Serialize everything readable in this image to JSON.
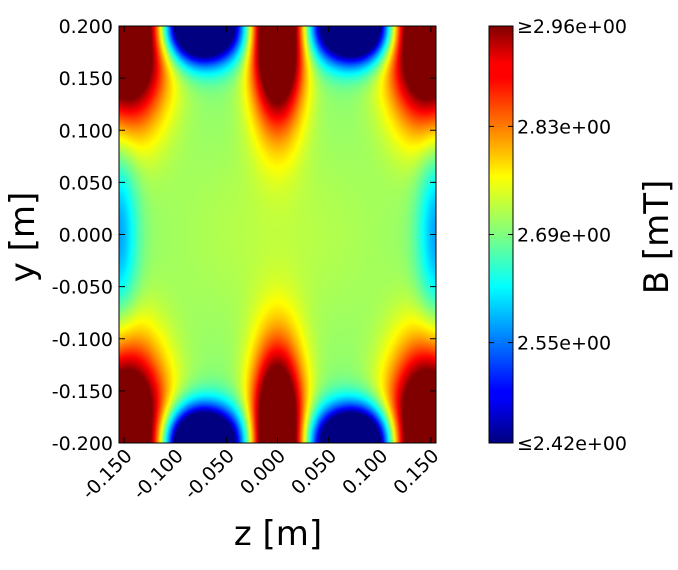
{
  "chart_data": {
    "type": "heatmap",
    "title": "",
    "xlabel": "z [m]",
    "ylabel": "y [m]",
    "xlim": [
      -0.155,
      0.155
    ],
    "ylim": [
      -0.2,
      0.2
    ],
    "x_ticks": [
      -0.15,
      -0.1,
      -0.05,
      0.0,
      0.05,
      0.1,
      0.15
    ],
    "x_tick_labels": [
      "-0.150",
      "-0.100",
      "-0.050",
      "0.000",
      "0.050",
      "0.100",
      "0.150"
    ],
    "y_ticks": [
      0.2,
      0.15,
      0.1,
      0.05,
      0.0,
      -0.05,
      -0.1,
      -0.15,
      -0.2
    ],
    "y_tick_labels": [
      "0.200",
      "0.150",
      "0.100",
      "0.050",
      "0.000",
      "-0.050",
      "-0.100",
      "-0.150",
      "-0.200"
    ],
    "grid": false,
    "colormap": "jet",
    "colorbar": {
      "label": "B [mT]",
      "min": 2.42,
      "max": 2.96,
      "ticks": [
        2.96,
        2.83,
        2.69,
        2.55,
        2.42
      ],
      "tick_labels": [
        "≥2.96e+00",
        "2.83e+00",
        "2.69e+00",
        "2.55e+00",
        "≤2.42e+00"
      ]
    },
    "field_model": {
      "center_value": 2.69,
      "coil_positions_z": [
        -0.148,
        0.0,
        0.148
      ],
      "coil_positions_y": [
        -0.2,
        0.2
      ],
      "red_lobes_z": [
        -0.148,
        0.0,
        0.148
      ],
      "blue_lobes_z": [
        -0.074,
        0.074
      ]
    }
  }
}
